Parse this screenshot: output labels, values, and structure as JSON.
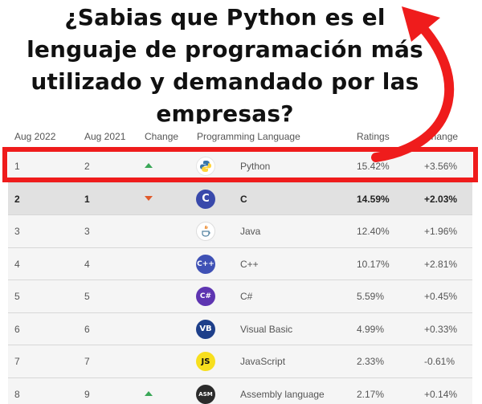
{
  "headline": {
    "line1": "¿Sabias que Python es el",
    "line2": "lenguaje de programación más",
    "line3": "utilizado y demandado por las",
    "line4": "empresas?"
  },
  "table": {
    "headers": [
      "Aug 2022",
      "Aug 2021",
      "Change",
      "Programming Language",
      "Ratings",
      "Change"
    ],
    "rows": [
      {
        "rank_2022": "1",
        "rank_2021": "2",
        "change": "up",
        "language": "Python",
        "logo": "python-logo",
        "rating": "15.42%",
        "delta": "+3.56%"
      },
      {
        "rank_2022": "2",
        "rank_2021": "1",
        "change": "down",
        "language": "C",
        "logo": "c-logo",
        "logo_text": "C",
        "rating": "14.59%",
        "delta": "+2.03%"
      },
      {
        "rank_2022": "3",
        "rank_2021": "3",
        "change": "",
        "language": "Java",
        "logo": "java-logo",
        "rating": "12.40%",
        "delta": "+1.96%"
      },
      {
        "rank_2022": "4",
        "rank_2021": "4",
        "change": "",
        "language": "C++",
        "logo": "cpp-logo",
        "logo_text": "C++",
        "rating": "10.17%",
        "delta": "+2.81%"
      },
      {
        "rank_2022": "5",
        "rank_2021": "5",
        "change": "",
        "language": "C#",
        "logo": "csharp-logo",
        "logo_text": "C#",
        "rating": "5.59%",
        "delta": "+0.45%"
      },
      {
        "rank_2022": "6",
        "rank_2021": "6",
        "change": "",
        "language": "Visual Basic",
        "logo": "vb-logo",
        "logo_text": "VB",
        "rating": "4.99%",
        "delta": "+0.33%"
      },
      {
        "rank_2022": "7",
        "rank_2021": "7",
        "change": "",
        "language": "JavaScript",
        "logo": "js-logo",
        "logo_text": "JS",
        "rating": "2.33%",
        "delta": "-0.61%"
      },
      {
        "rank_2022": "8",
        "rank_2021": "9",
        "change": "up",
        "language": "Assembly language",
        "logo": "asm-logo",
        "logo_text": "ASM",
        "rating": "2.17%",
        "delta": "+0.14%"
      }
    ]
  },
  "colors": {
    "highlight": "#ef1c1c",
    "up": "#3aa757",
    "down": "#e05a2b"
  }
}
